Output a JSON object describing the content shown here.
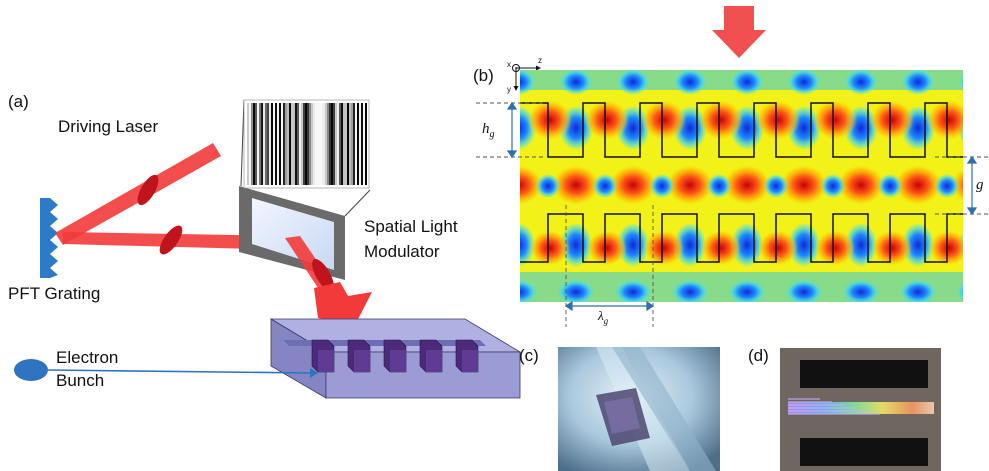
{
  "panel_a": {
    "label": "(a)",
    "driving_laser": "Driving Laser",
    "slm_line1": "Spatial Light",
    "slm_line2": "Modulator",
    "grating": "PFT Grating",
    "electron_line1": "Electron",
    "electron_line2": "Bunch"
  },
  "panel_b": {
    "label": "(b)",
    "axis_x": "x",
    "axis_y": "y",
    "axis_z": "z",
    "h_g": "h",
    "h_g_sub": "g",
    "gap": "g",
    "lambda": "λ",
    "lambda_sub": "g"
  },
  "panel_c": {
    "label": "(c)"
  },
  "panel_d": {
    "label": "(d)"
  },
  "colors": {
    "laser": "#f23a3a",
    "laser_dark": "#c0141c",
    "structure": "#9b9bd6",
    "structure_dark": "#4b2a7a",
    "electron": "#2f74c0",
    "dim_line": "#2f6fb0"
  }
}
